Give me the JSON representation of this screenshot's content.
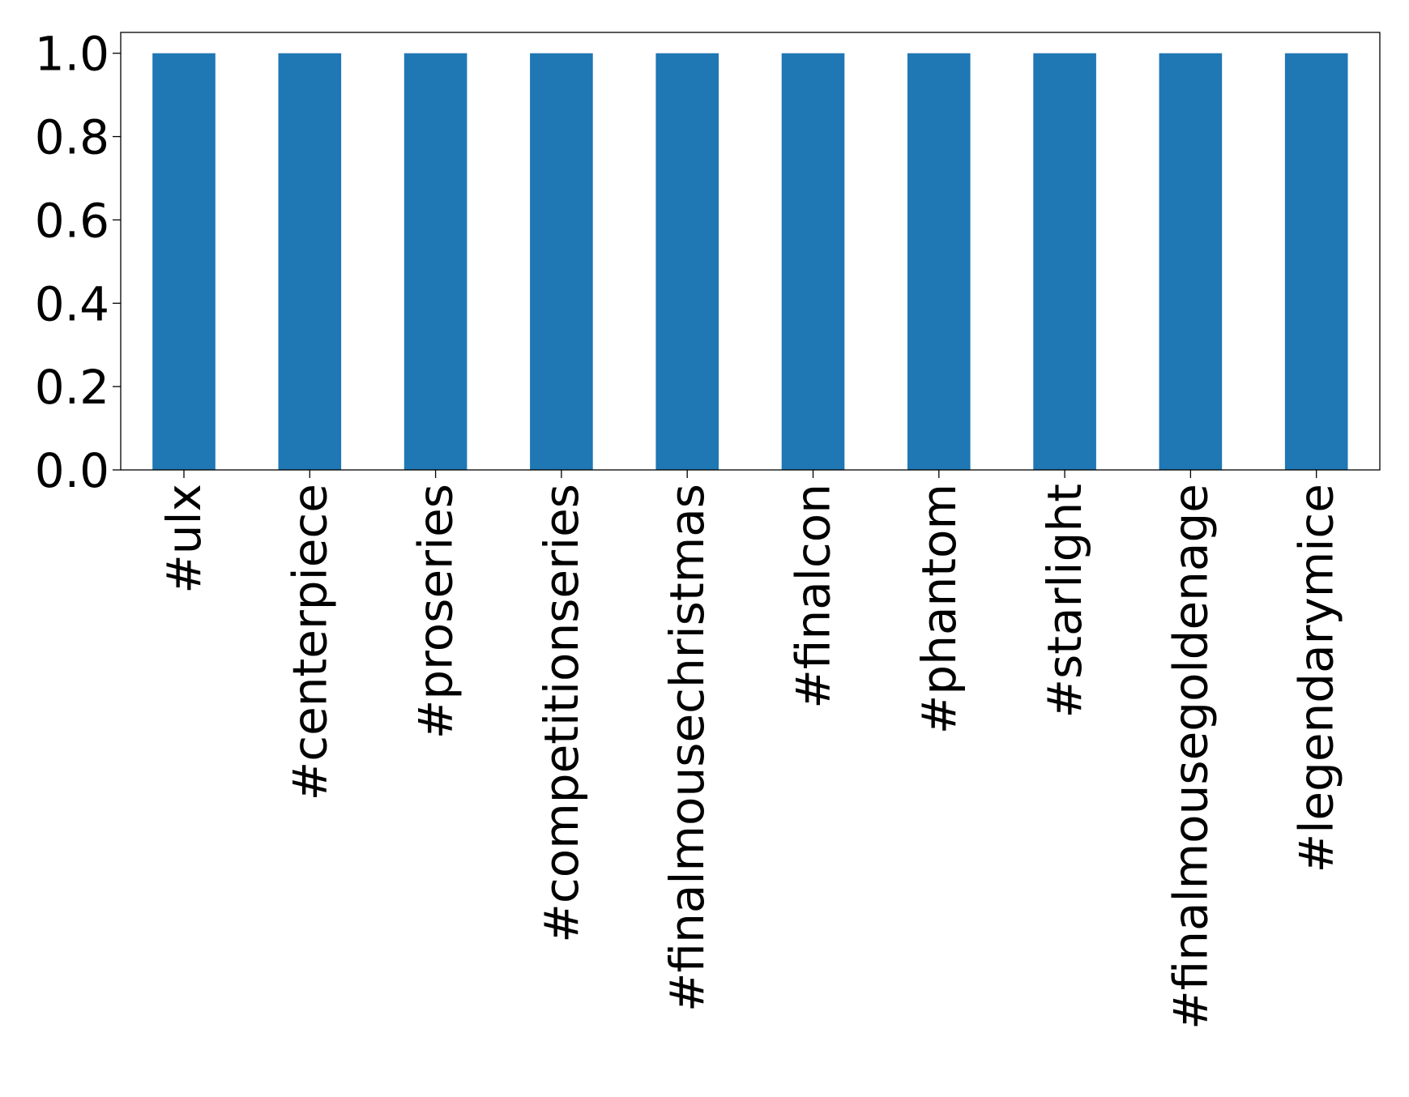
{
  "chart_data": {
    "type": "bar",
    "title": "",
    "xlabel": "",
    "ylabel": "",
    "categories": [
      "#ulx",
      "#centerpiece",
      "#proseries",
      "#competitionseries",
      "#finalmousechristmas",
      "#finalcon",
      "#phantom",
      "#starlight",
      "#finalmousegoldenage",
      "#legendarymice"
    ],
    "values": [
      1.0,
      1.0,
      1.0,
      1.0,
      1.0,
      1.0,
      1.0,
      1.0,
      1.0,
      1.0
    ],
    "ylim": [
      0,
      1.05
    ],
    "yticks": [
      "0.0",
      "0.2",
      "0.4",
      "0.6",
      "0.8",
      "1.0"
    ],
    "bar_color": "#1f77b4",
    "grid": false,
    "legend": "none"
  }
}
